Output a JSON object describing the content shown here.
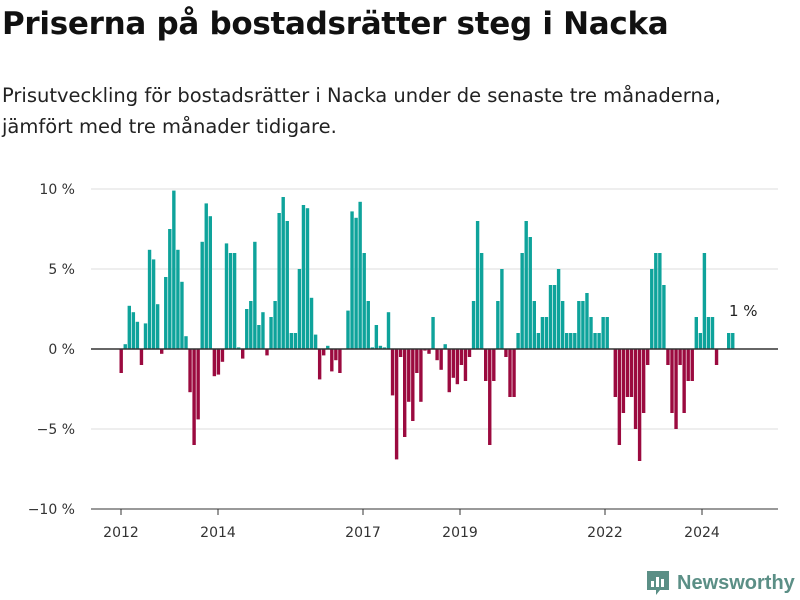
{
  "title": "Priserna på bostadsrätter steg i Nacka",
  "subtitle": "Prisutveckling för bostadsrätter i Nacka under de senaste tre månaderna, jämfört med tre månader tidigare.",
  "brand": "Newsworthy",
  "chart_data": {
    "type": "bar",
    "y_ticks": [
      "10 %",
      "5 %",
      "0 %",
      "−5 %",
      "−10 %"
    ],
    "x_ticks": [
      "2012",
      "2014",
      "2017",
      "2019",
      "2022",
      "2024"
    ],
    "ylim": [
      -10,
      10
    ],
    "grid": "horizontal",
    "colors": {
      "positive": "#0ea39b",
      "negative": "#9b0a3f"
    },
    "annotation": "1 %",
    "values": [
      -1.5,
      0.3,
      2.7,
      2.3,
      1.7,
      -1.0,
      1.6,
      6.2,
      5.6,
      2.8,
      -0.3,
      4.5,
      7.5,
      9.9,
      6.2,
      4.2,
      0.8,
      -2.7,
      -6.0,
      -4.4,
      6.7,
      9.1,
      8.3,
      -1.7,
      -1.6,
      -0.8,
      6.6,
      6.0,
      6.0,
      0.1,
      -0.6,
      2.5,
      3.0,
      6.7,
      1.5,
      2.3,
      -0.4,
      2.0,
      3.0,
      8.5,
      9.5,
      8.0,
      1.0,
      1.0,
      5.0,
      9.0,
      8.8,
      3.2,
      0.9,
      -1.9,
      -0.4,
      0.2,
      -1.4,
      -0.7,
      -1.5,
      0.0,
      2.4,
      8.6,
      8.2,
      9.2,
      6.0,
      3.0,
      0.1,
      1.5,
      0.2,
      0.1,
      2.3,
      -2.9,
      -6.9,
      -0.5,
      -5.5,
      -3.3,
      -4.5,
      -1.5,
      -3.3,
      -0.1,
      -0.3,
      2.0,
      -0.7,
      -1.3,
      0.3,
      -2.7,
      -1.8,
      -2.2,
      -1.0,
      -2.0,
      -0.5,
      3.0,
      8.0,
      6.0,
      -2.0,
      -6.0,
      -2.0,
      3.0,
      5.0,
      -0.5,
      -3.0,
      -3.0,
      1.0,
      6.0,
      8.0,
      7.0,
      3.0,
      1.0,
      2.0,
      2.0,
      4.0,
      4.0,
      5.0,
      3.0,
      1.0,
      1.0,
      1.0,
      3.0,
      3.0,
      3.5,
      2.0,
      1.0,
      1.0,
      2.0,
      2.0,
      0.0,
      -3.0,
      -6.0,
      -4.0,
      -3.0,
      -3.0,
      -5.0,
      -7.0,
      -4.0,
      -1.0,
      5.0,
      6.0,
      6.0,
      4.0,
      -1.0,
      -4.0,
      -5.0,
      -1.0,
      -4.0,
      -2.0,
      -2.0,
      2.0,
      1.0,
      6.0,
      2.0,
      2.0,
      -1.0,
      0.0,
      0.0,
      1.0,
      1.0
    ]
  }
}
